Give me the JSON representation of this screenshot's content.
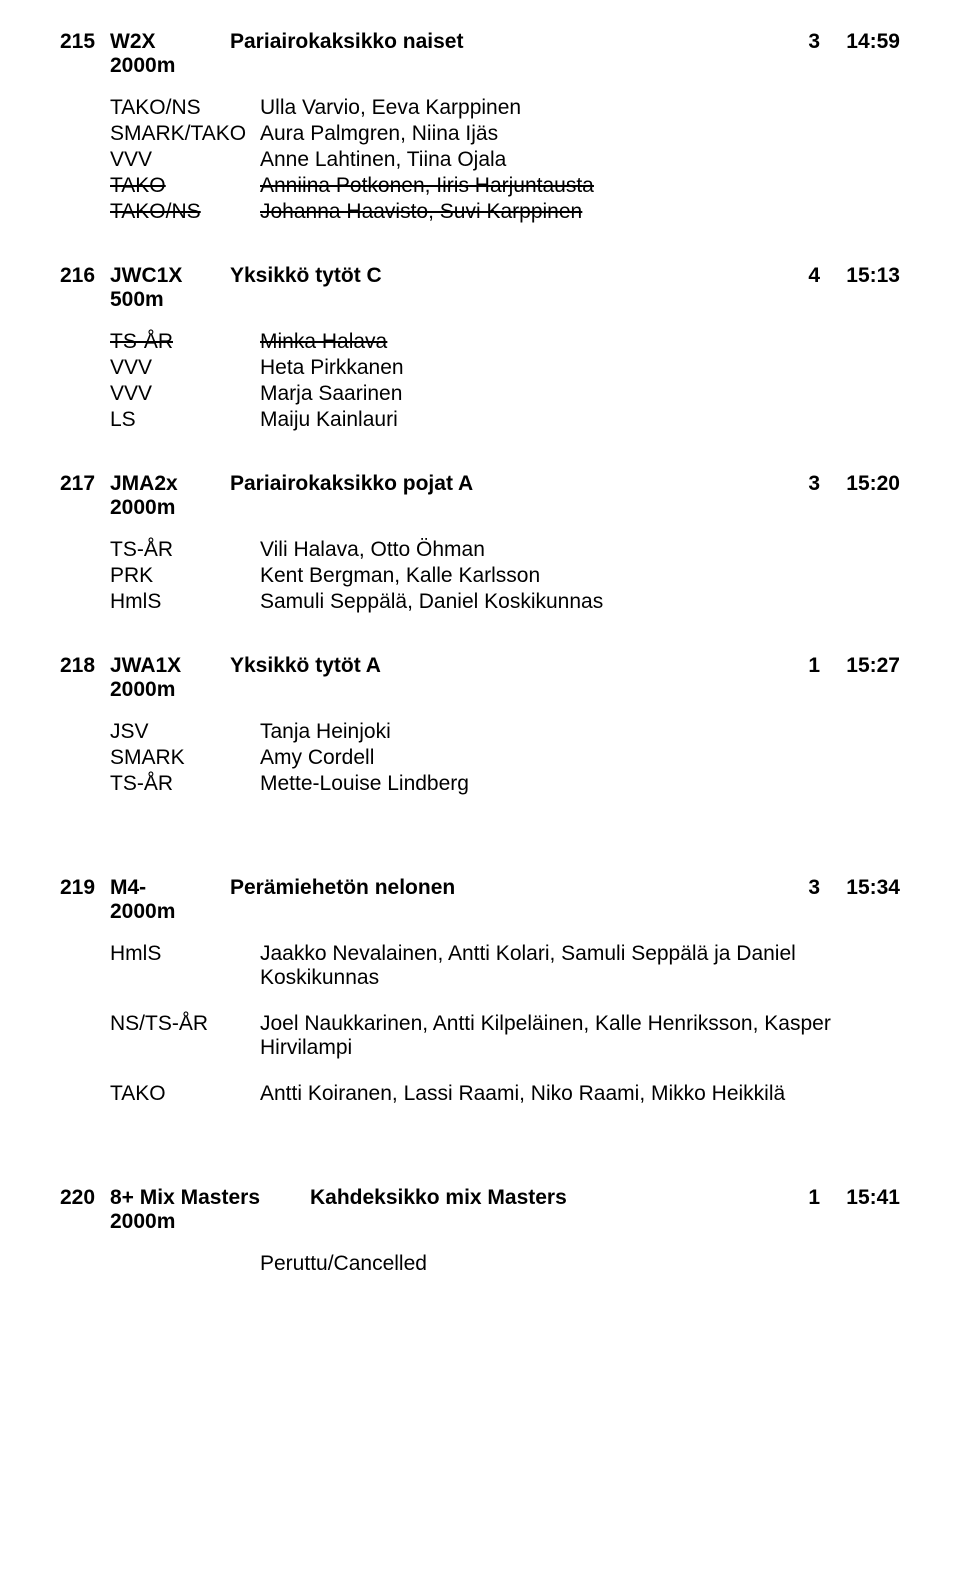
{
  "events": [
    {
      "num": "215",
      "code": "W2X",
      "sub": "2000m",
      "title": "Pariairokaksikko naiset",
      "count": "3",
      "time": "14:59",
      "entries": [
        {
          "club": "TAKO/NS",
          "names": "Ulla Varvio, Eeva Karppinen",
          "strike": false
        },
        {
          "club": "SMARK/TAKO",
          "names": "Aura Palmgren, Niina Ijäs",
          "strike": false
        },
        {
          "club": "VVV",
          "names": "Anne Lahtinen, Tiina Ojala",
          "strike": false
        },
        {
          "club": "TAKO",
          "names": "Anniina Potkonen, Iiris Harjuntausta",
          "strike": true
        },
        {
          "club": "TAKO/NS",
          "names": "Johanna Haavisto, Suvi Karppinen",
          "strike": true
        }
      ]
    },
    {
      "num": "216",
      "code": "JWC1X",
      "sub": "500m",
      "title": "Yksikkö tytöt C",
      "count": "4",
      "time": "15:13",
      "entries": [
        {
          "club": "TS-ÅR",
          "names": "Minka Halava",
          "strike": true
        },
        {
          "club": "VVV",
          "names": "Heta Pirkkanen",
          "strike": false
        },
        {
          "club": "VVV",
          "names": "Marja Saarinen",
          "strike": false
        },
        {
          "club": "LS",
          "names": "Maiju Kainlauri",
          "strike": false
        }
      ]
    },
    {
      "num": "217",
      "code": "JMA2x",
      "sub": "2000m",
      "title": "Pariairokaksikko pojat A",
      "count": "3",
      "time": "15:20",
      "entries": [
        {
          "club": "TS-ÅR",
          "names": "Vili Halava, Otto Öhman",
          "strike": false
        },
        {
          "club": "PRK",
          "names": "Kent Bergman, Kalle Karlsson",
          "strike": false
        },
        {
          "club": "HmlS",
          "names": "Samuli Seppälä, Daniel Koskikunnas",
          "strike": false
        }
      ]
    },
    {
      "num": "218",
      "code": "JWA1X",
      "sub": "2000m",
      "title": "Yksikkö tytöt A",
      "count": "1",
      "time": "15:27",
      "entries": [
        {
          "club": "JSV",
          "names": "Tanja Heinjoki",
          "strike": false
        },
        {
          "club": "SMARK",
          "names": "Amy Cordell",
          "strike": false
        },
        {
          "club": "TS-ÅR",
          "names": "Mette-Louise Lindberg",
          "strike": false
        }
      ]
    },
    {
      "num": "219",
      "code": "M4-",
      "sub": "2000m",
      "title": "Perämiehetön nelonen",
      "count": "3",
      "time": "15:34",
      "entries": [
        {
          "club": "HmlS",
          "names": "Jaakko Nevalainen, Antti Kolari, Samuli Seppälä ja Daniel Koskikunnas",
          "strike": false
        },
        {
          "club": "NS/TS-ÅR",
          "names": "Joel Naukkarinen, Antti Kilpeläinen, Kalle Henriksson, Kasper Hirvilampi",
          "strike": false
        },
        {
          "club": "TAKO",
          "names": "Antti Koiranen, Lassi Raami, Niko Raami, Mikko Heikkilä",
          "strike": false
        }
      ],
      "gap_before": true,
      "entry_spacing": true
    },
    {
      "num": "220",
      "code": "8+ Mix Masters",
      "sub": "2000m",
      "title": "Kahdeksikko mix Masters",
      "count": "1",
      "time": "15:41",
      "entries": [],
      "note": "Peruttu/Cancelled",
      "gap_before": true,
      "wide_code": true
    }
  ]
}
